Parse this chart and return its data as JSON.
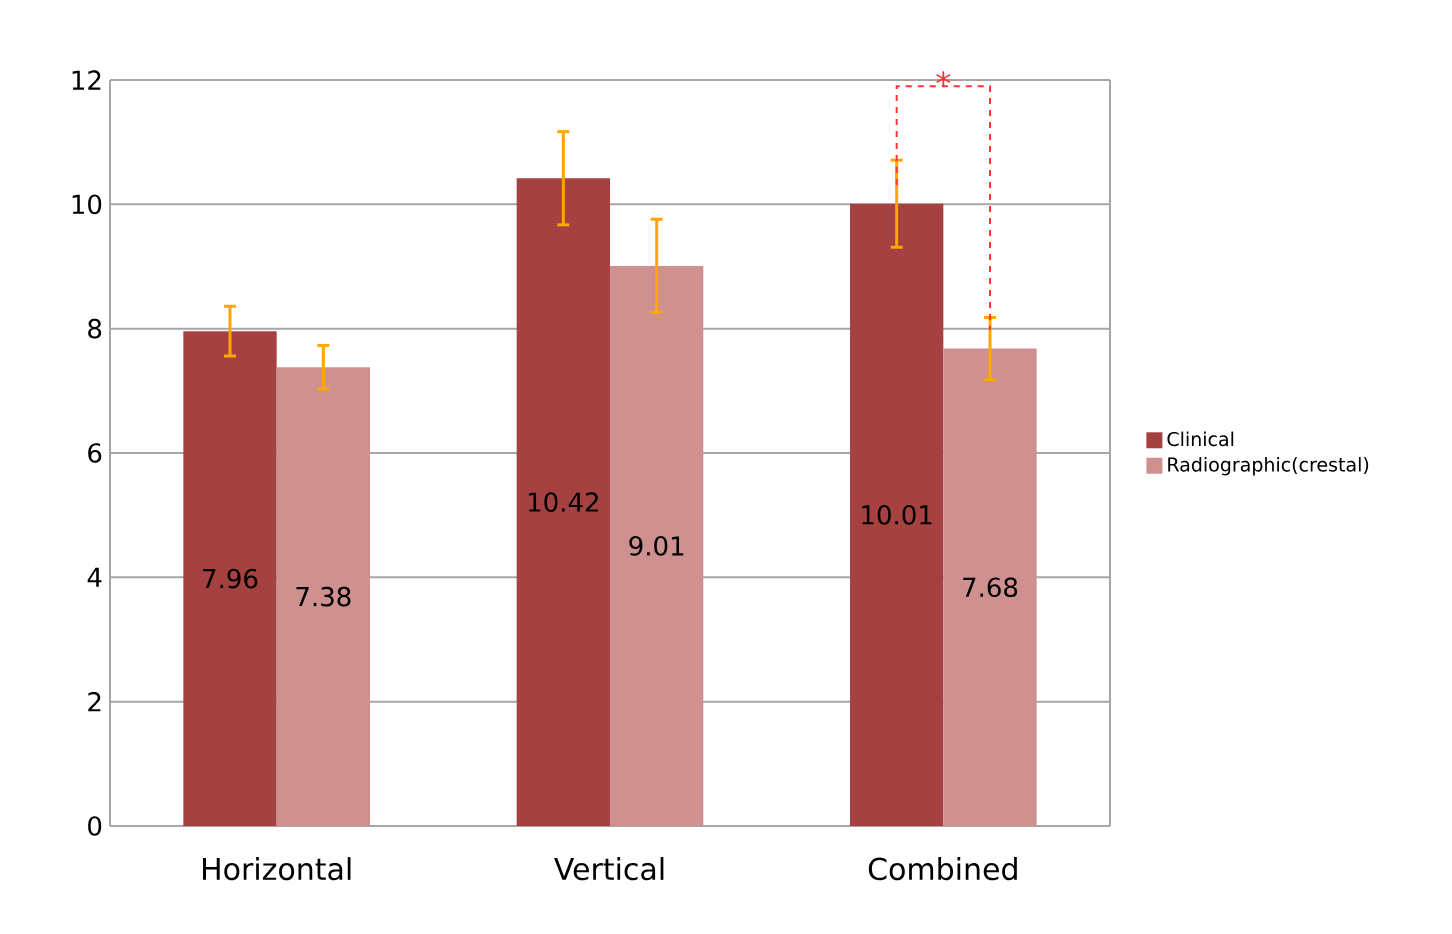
{
  "chart_data": {
    "type": "bar",
    "categories": [
      "Horizontal",
      "Vertical",
      "Combined"
    ],
    "series": [
      {
        "name": "Clinical",
        "color": "#a54141",
        "values": [
          7.96,
          10.42,
          10.01
        ],
        "errors": [
          0.4,
          0.75,
          0.7
        ]
      },
      {
        "name": "Radiographic(crestal)",
        "color": "#cf9090",
        "values": [
          7.38,
          9.01,
          7.68
        ],
        "errors": [
          0.35,
          0.75,
          0.5
        ]
      }
    ],
    "ylim": [
      0,
      12
    ],
    "yticks": [
      0,
      2,
      4,
      6,
      8,
      10,
      12
    ],
    "grid": "y",
    "legend": "right",
    "data_labels": true,
    "annotations": [
      "*"
    ]
  }
}
